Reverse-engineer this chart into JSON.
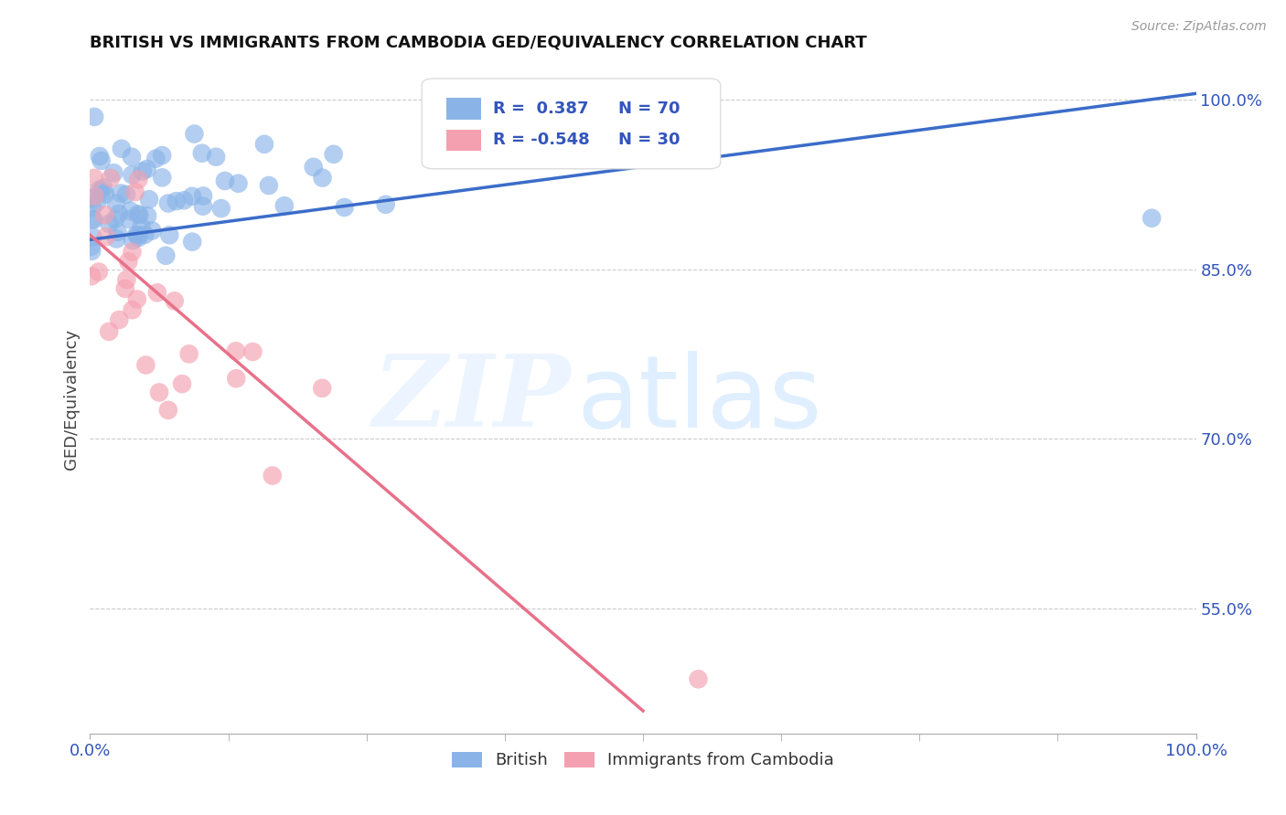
{
  "title": "BRITISH VS IMMIGRANTS FROM CAMBODIA GED/EQUIVALENCY CORRELATION CHART",
  "source": "Source: ZipAtlas.com",
  "ylabel": "GED/Equivalency",
  "xlim": [
    0.0,
    1.0
  ],
  "ylim": [
    0.44,
    1.03
  ],
  "yticks": [
    0.55,
    0.7,
    0.85,
    1.0
  ],
  "ytick_labels": [
    "55.0%",
    "70.0%",
    "85.0%",
    "100.0%"
  ],
  "xtick_labels": [
    "0.0%",
    "100.0%"
  ],
  "legend_labels": [
    "British",
    "Immigrants from Cambodia"
  ],
  "blue_R": "0.387",
  "blue_N": "70",
  "pink_R": "-0.548",
  "pink_N": "30",
  "blue_color": "#8AB4E8",
  "pink_color": "#F4A0B0",
  "blue_line_color": "#3B6CC9",
  "pink_line_color": "#E8718A",
  "watermark_zip": "ZIP",
  "watermark_atlas": "atlas",
  "blue_line_x0": 0.0,
  "blue_line_y0": 0.876,
  "blue_line_x1": 1.0,
  "blue_line_y1": 1.005,
  "pink_line_x0": 0.0,
  "pink_line_y0": 0.88,
  "pink_line_x1": 0.5,
  "pink_line_y1": 0.46,
  "blue_seed": 12,
  "pink_seed": 7
}
